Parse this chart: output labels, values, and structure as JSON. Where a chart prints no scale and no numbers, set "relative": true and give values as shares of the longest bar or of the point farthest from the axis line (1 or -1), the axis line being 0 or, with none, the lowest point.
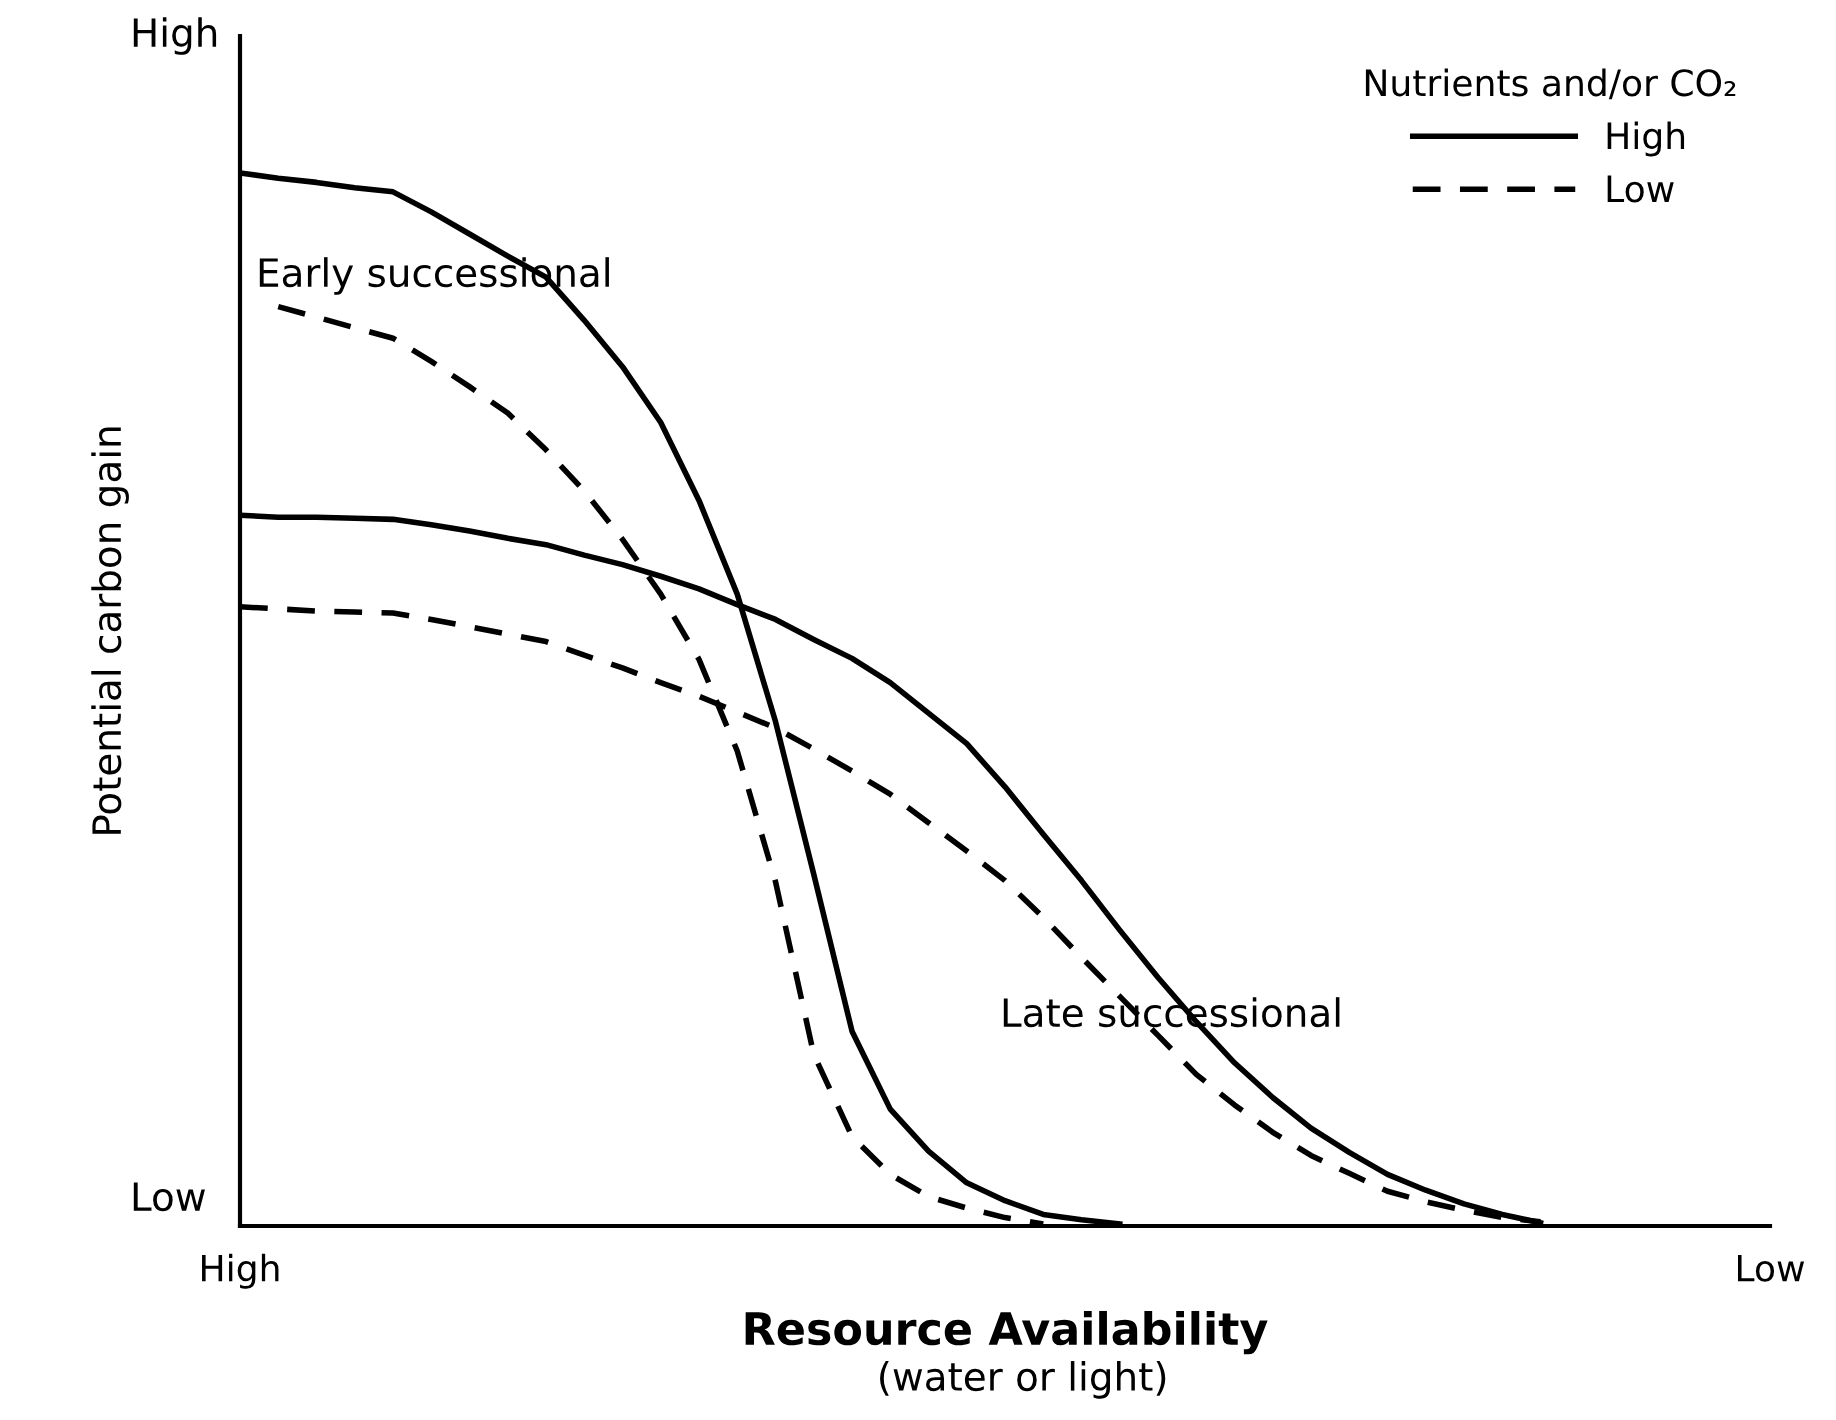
{
  "chart_data": {
    "type": "line",
    "relative": true,
    "xlabel": "Resource Availability",
    "ylabel": "Potential carbon gain",
    "legend_title": "Nutrients and/or CO₂",
    "legend": "top right",
    "grid": false,
    "marker": "none",
    "categories": [
      "High",
      null,
      null,
      null,
      null,
      null,
      null,
      null,
      null,
      null,
      null,
      null,
      null,
      null,
      null,
      null,
      null,
      null,
      null,
      null,
      null,
      null,
      null,
      null,
      null,
      null,
      null,
      null,
      null,
      null,
      null,
      null,
      null,
      null,
      null,
      null,
      null,
      null,
      null,
      null,
      "Low"
    ],
    "series": [
      {
        "name": "High",
        "color": "#000000",
        "line_style": "solid",
        "values": [
          1.0,
          0.995,
          0.991,
          0.986,
          0.982,
          0.963,
          0.942,
          0.921,
          0.901,
          0.86,
          0.816,
          0.763,
          0.689,
          0.6,
          0.479,
          0.334,
          0.185,
          0.111,
          0.071,
          0.041,
          0.024,
          0.011,
          0.006,
          0.002,
          null,
          null,
          null,
          null,
          null,
          null,
          null,
          null,
          null,
          null,
          null,
          null,
          null,
          null,
          null,
          null,
          null
        ]
      },
      {
        "name": "Low",
        "color": "#000000",
        "line_style": "dashed",
        "values": [
          null,
          0.873,
          0.863,
          0.853,
          0.843,
          0.821,
          0.797,
          0.772,
          0.737,
          0.698,
          0.652,
          0.6,
          0.538,
          0.451,
          0.327,
          0.163,
          0.085,
          0.049,
          0.028,
          0.017,
          0.008,
          0.002,
          null,
          null,
          null,
          null,
          null,
          null,
          null,
          null,
          null,
          null,
          null,
          null,
          null,
          null,
          null,
          null,
          null,
          null,
          null
        ]
      },
      {
        "color": "#000000",
        "line_style": "solid",
        "values": [
          0.675,
          0.673,
          0.673,
          0.672,
          0.671,
          0.666,
          0.66,
          0.653,
          0.647,
          0.637,
          0.628,
          0.617,
          0.605,
          0.59,
          0.576,
          0.557,
          0.539,
          0.516,
          0.487,
          0.458,
          0.417,
          0.372,
          0.328,
          0.281,
          0.236,
          0.194,
          0.155,
          0.122,
          0.093,
          0.07,
          0.049,
          0.034,
          0.021,
          0.011,
          0.003,
          null,
          null,
          null,
          null,
          null,
          null
        ]
      },
      {
        "color": "#000000",
        "line_style": "dashed",
        "values": [
          0.588,
          0.586,
          0.584,
          0.583,
          0.582,
          0.576,
          0.569,
          0.562,
          0.555,
          0.542,
          0.53,
          0.516,
          0.503,
          0.488,
          0.473,
          0.453,
          0.432,
          0.41,
          0.383,
          0.356,
          0.328,
          0.293,
          0.255,
          0.218,
          0.181,
          0.144,
          0.115,
          0.089,
          0.067,
          0.05,
          0.033,
          0.023,
          0.015,
          0.008,
          0.004,
          null,
          null,
          null,
          null,
          null,
          null
        ]
      }
    ],
    "annotations": [
      "Early successional",
      "Late successional",
      "(water or light)",
      "High",
      "Low"
    ]
  }
}
